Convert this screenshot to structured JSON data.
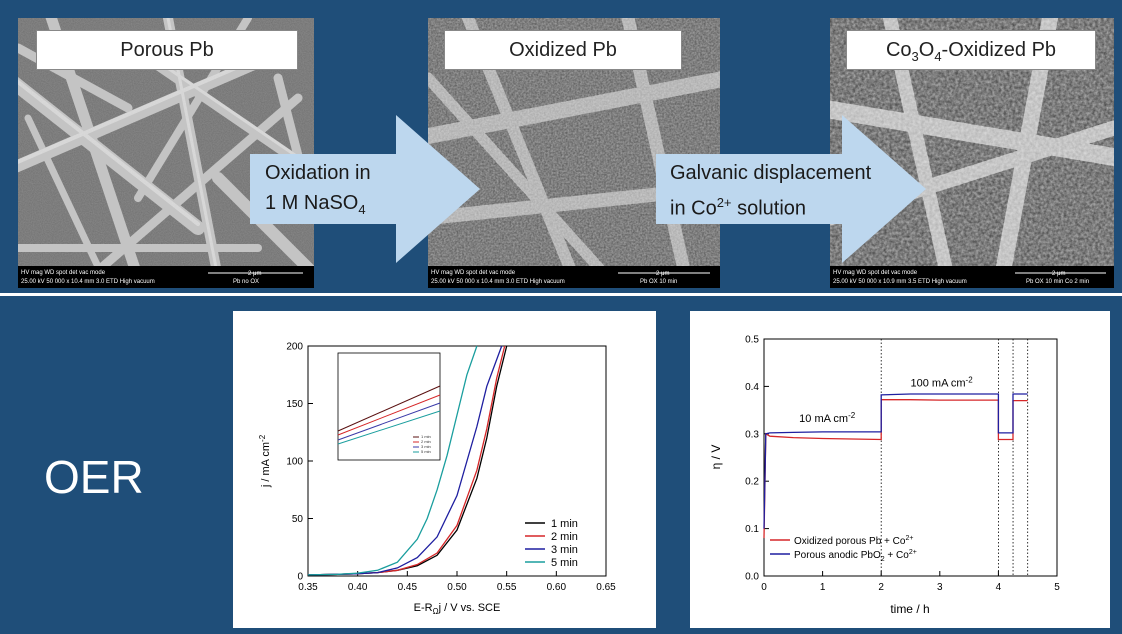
{
  "steps": {
    "porous_label": "Porous Pb",
    "oxidized_label": "Oxidized Pb",
    "co_label_pre": "Co",
    "co_label_sub1": "3",
    "co_label_mid": "O",
    "co_label_sub2": "4",
    "co_label_post": "-Oxidized Pb"
  },
  "arrows": {
    "oxidation_line1": "Oxidation in",
    "oxidation_line2_pre": "1 M NaSO",
    "oxidation_line2_sub": "4",
    "galvanic_line1": "Galvanic displacement",
    "galvanic_line2_pre": "in Co",
    "galvanic_line2_sup": "2+",
    "galvanic_line2_post": " solution"
  },
  "sem_bars": [
    {
      "row1": "HV     mag    WD   spot  det   vac mode",
      "row2": "25.00 kV 50 000 x 10.4 mm 3.0 ETD High vacuum",
      "scale": "2 μm",
      "sample": "Pb no OX"
    },
    {
      "row1": "HV     mag    WD   spot  det   vac mode",
      "row2": "25.00 kV 50 000 x 10.4 mm 3.0 ETD High vacuum",
      "scale": "2 μm",
      "sample": "Pb OX 10 min"
    },
    {
      "row1": "HV     mag    WD   spot  det   vac mode",
      "row2": "25.00 kV 50 000 x 10.9 mm 3.5 ETD High vacuum",
      "scale": "2 μm",
      "sample": "Pb OX 10 min Co 2 min"
    }
  ],
  "oer_label": "OER",
  "chart_data": [
    {
      "type": "line",
      "xlabel": "E-R",
      "xlabel_sub": "Ω",
      "xlabel_post": "j  /  V vs. SCE",
      "ylabel": "j  /  mA cm",
      "ylabel_sup": "-2",
      "xlim": [
        0.35,
        0.65
      ],
      "ylim": [
        0,
        200
      ],
      "xticks": [
        "0.35",
        "0.40",
        "0.45",
        "0.50",
        "0.55",
        "0.60",
        "0.65"
      ],
      "yticks": [
        "0",
        "50",
        "100",
        "150",
        "200"
      ],
      "legend_position": "bottom-right",
      "series": [
        {
          "name": "1 min",
          "color": "#000000",
          "x": [
            0.35,
            0.38,
            0.4,
            0.42,
            0.44,
            0.46,
            0.48,
            0.5,
            0.52,
            0.53,
            0.54,
            0.55
          ],
          "y": [
            1,
            1.5,
            2,
            3,
            5,
            9,
            18,
            40,
            85,
            120,
            165,
            200
          ]
        },
        {
          "name": "2 min",
          "color": "#d62728",
          "x": [
            0.35,
            0.38,
            0.4,
            0.42,
            0.44,
            0.46,
            0.48,
            0.5,
            0.52,
            0.53,
            0.54,
            0.548
          ],
          "y": [
            1,
            1.5,
            2,
            3,
            5,
            10,
            20,
            44,
            92,
            128,
            172,
            200
          ]
        },
        {
          "name": "3 min",
          "color": "#1f1fa0",
          "x": [
            0.35,
            0.38,
            0.4,
            0.42,
            0.44,
            0.46,
            0.48,
            0.5,
            0.52,
            0.53,
            0.545
          ],
          "y": [
            1,
            1.5,
            2,
            3,
            7,
            16,
            34,
            70,
            130,
            165,
            200
          ]
        },
        {
          "name": "5 min",
          "color": "#1a9e9e",
          "x": [
            0.35,
            0.38,
            0.4,
            0.42,
            0.44,
            0.46,
            0.47,
            0.48,
            0.49,
            0.5,
            0.51,
            0.52
          ],
          "y": [
            1,
            1.5,
            2.5,
            5,
            12,
            32,
            50,
            75,
            105,
            140,
            175,
            200
          ]
        }
      ]
    },
    {
      "type": "line",
      "xlabel": "time  /  h",
      "ylabel": "η  /  V",
      "xlim": [
        0,
        5
      ],
      "ylim": [
        0,
        0.5
      ],
      "xticks": [
        "0",
        "1",
        "2",
        "3",
        "4",
        "5"
      ],
      "yticks": [
        "0.0",
        "0.1",
        "0.2",
        "0.3",
        "0.4",
        "0.5"
      ],
      "vlines": [
        2,
        4,
        4.25,
        4.5
      ],
      "annotations": [
        {
          "text": "10 mA cm",
          "sup": "-2",
          "x": 0.6,
          "y": 0.325
        },
        {
          "text": "100 mA cm",
          "sup": "-2",
          "x": 2.5,
          "y": 0.4
        }
      ],
      "legend_position": "bottom-left",
      "series": [
        {
          "name": "Oxidized porous Pb + Co",
          "name_sup": "2+",
          "color": "#d62728",
          "x": [
            0,
            0.03,
            0.1,
            0.5,
            1.0,
            1.5,
            2.0,
            2.0,
            2.5,
            3.0,
            3.5,
            4.0,
            4.0,
            4.25,
            4.25,
            4.5,
            4.5
          ],
          "y": [
            0.08,
            0.3,
            0.295,
            0.292,
            0.29,
            0.289,
            0.288,
            0.372,
            0.372,
            0.371,
            0.371,
            0.371,
            0.288,
            0.288,
            0.37,
            0.37,
            0.37
          ]
        },
        {
          "name": "Porous anodic PbO",
          "name_sub": "2",
          "name_post": " + Co",
          "name_sup": "2+",
          "color": "#1f1fa0",
          "x": [
            0,
            0.03,
            0.1,
            0.5,
            1.0,
            1.5,
            2.0,
            2.0,
            2.5,
            3.0,
            3.5,
            4.0,
            4.0,
            4.25,
            4.25,
            4.5,
            4.5
          ],
          "y": [
            0.1,
            0.3,
            0.302,
            0.303,
            0.304,
            0.304,
            0.304,
            0.382,
            0.384,
            0.384,
            0.384,
            0.384,
            0.302,
            0.302,
            0.384,
            0.384,
            0.384
          ]
        }
      ]
    }
  ]
}
